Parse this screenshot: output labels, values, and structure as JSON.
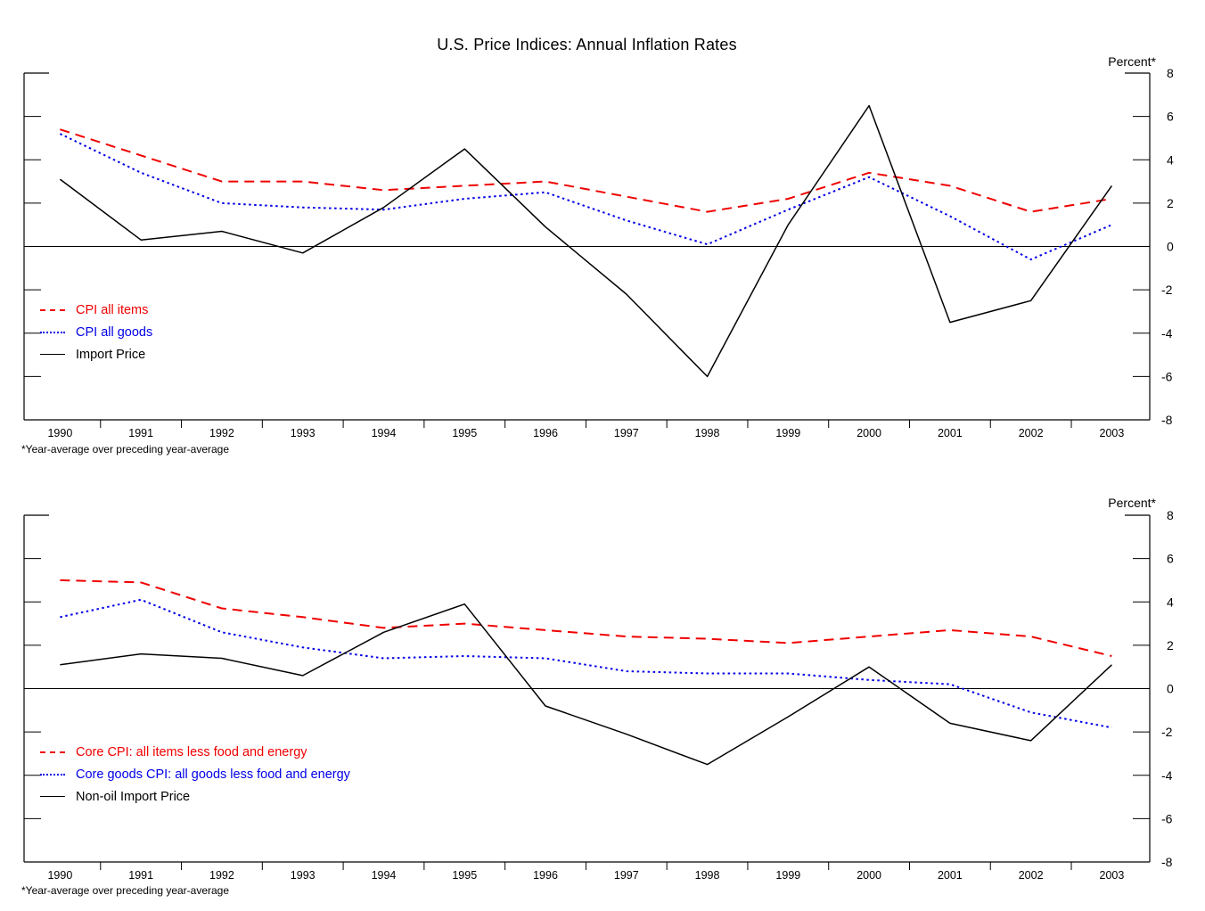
{
  "page_title": "U.S. Price Indices: Annual Inflation Rates",
  "chart_data": [
    {
      "type": "line",
      "title": "U.S. Price Indices: Annual Inflation Rates",
      "unit_label": "Percent*",
      "footnote": "*Year-average over preceding year-average",
      "x": [
        1990,
        1991,
        1992,
        1993,
        1994,
        1995,
        1996,
        1997,
        1998,
        1999,
        2000,
        2001,
        2002,
        2003
      ],
      "ylim": [
        -8,
        8
      ],
      "yticks": [
        8,
        6,
        4,
        2,
        0,
        -2,
        -4,
        -6,
        -8
      ],
      "grid": false,
      "zero_reference_line": true,
      "legend_position": "inside-left",
      "series": [
        {
          "name": "CPI all items",
          "style": "dashed",
          "color": "#f00000",
          "values": [
            5.4,
            4.2,
            3.0,
            3.0,
            2.6,
            2.8,
            3.0,
            2.3,
            1.6,
            2.2,
            3.4,
            2.8,
            1.6,
            2.2
          ]
        },
        {
          "name": "CPI all goods",
          "style": "dotted",
          "color": "#0000e8",
          "values": [
            5.2,
            3.4,
            2.0,
            1.8,
            1.7,
            2.2,
            2.5,
            1.2,
            0.1,
            1.7,
            3.2,
            1.4,
            -0.6,
            1.0
          ]
        },
        {
          "name": "Import Price",
          "style": "solid",
          "color": "#000000",
          "values": [
            3.1,
            0.3,
            0.7,
            -0.3,
            1.8,
            4.5,
            0.9,
            -2.2,
            -6.0,
            1.0,
            6.5,
            -3.5,
            -2.5,
            2.8
          ]
        }
      ]
    },
    {
      "type": "line",
      "title": "",
      "unit_label": "Percent*",
      "footnote": "*Year-average over preceding year-average",
      "x": [
        1990,
        1991,
        1992,
        1993,
        1994,
        1995,
        1996,
        1997,
        1998,
        1999,
        2000,
        2001,
        2002,
        2003
      ],
      "ylim": [
        -8,
        8
      ],
      "yticks": [
        8,
        6,
        4,
        2,
        0,
        -2,
        -4,
        -6,
        -8
      ],
      "grid": false,
      "zero_reference_line": true,
      "legend_position": "inside-left",
      "series": [
        {
          "name": "Core CPI: all items less food and energy",
          "style": "dashed",
          "color": "#f00000",
          "values": [
            5.0,
            4.9,
            3.7,
            3.3,
            2.8,
            3.0,
            2.7,
            2.4,
            2.3,
            2.1,
            2.4,
            2.7,
            2.4,
            1.5
          ]
        },
        {
          "name": "Core goods CPI: all goods less food and energy",
          "style": "dotted",
          "color": "#0000e8",
          "values": [
            3.3,
            4.1,
            2.6,
            1.9,
            1.4,
            1.5,
            1.4,
            0.8,
            0.7,
            0.7,
            0.4,
            0.2,
            -1.1,
            -1.8
          ]
        },
        {
          "name": "Non-oil Import Price",
          "style": "solid",
          "color": "#000000",
          "values": [
            1.1,
            1.6,
            1.4,
            0.6,
            2.6,
            3.9,
            -0.8,
            -2.1,
            -3.5,
            -1.3,
            1.0,
            -1.6,
            -2.4,
            1.1
          ]
        }
      ]
    }
  ]
}
